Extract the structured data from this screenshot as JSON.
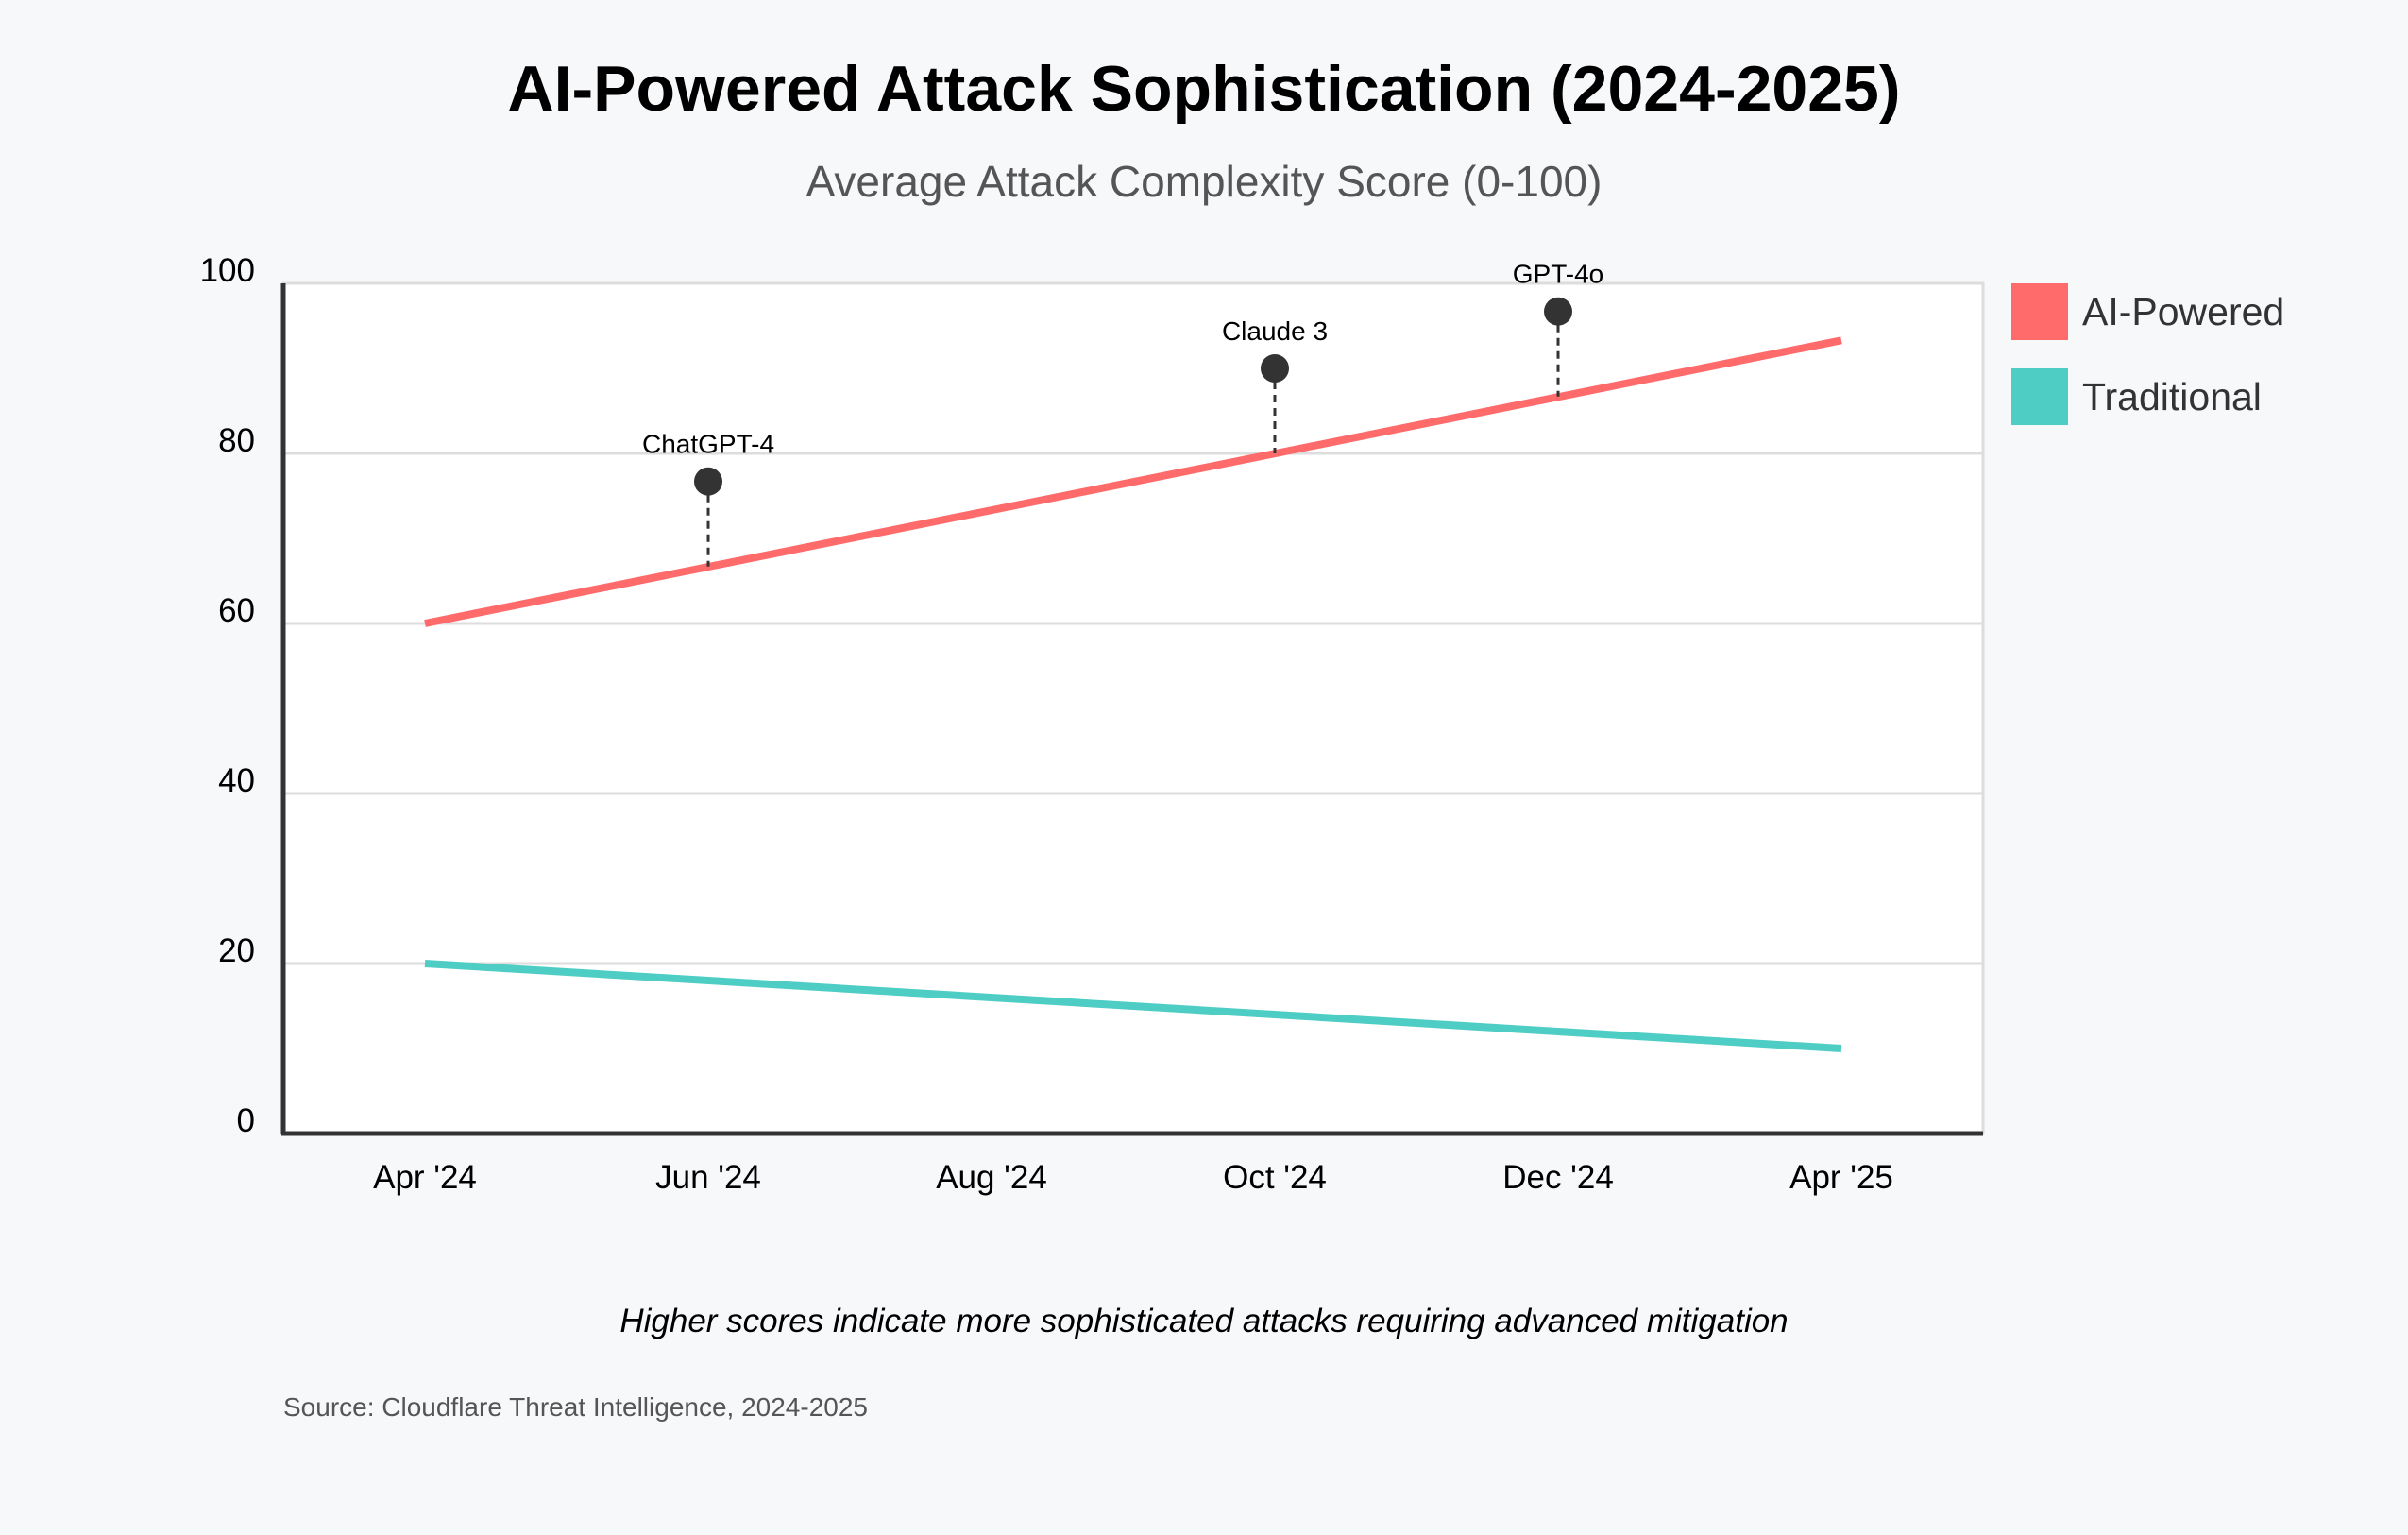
{
  "chart_data": {
    "type": "line",
    "title": "AI-Powered Attack Sophistication (2024-2025)",
    "subtitle": "Average Attack Complexity Score (0-100)",
    "xlabel": "",
    "ylabel": "",
    "ylim": [
      0,
      100
    ],
    "yticks": [
      "0",
      "20",
      "40",
      "60",
      "80",
      "100"
    ],
    "categories": [
      "Apr '24",
      "Jun '24",
      "Aug '24",
      "Oct '24",
      "Dec '24",
      "Apr '25"
    ],
    "grid": true,
    "legend_position": "right",
    "series": [
      {
        "name": "AI-Powered",
        "color": "#ff6b6b",
        "points": [
          {
            "x": "Apr '24",
            "y": 60
          },
          {
            "x": "Apr '25",
            "y": 93.3
          }
        ]
      },
      {
        "name": "Traditional",
        "color": "#4ecdc4",
        "points": [
          {
            "x": "Apr '24",
            "y": 20
          },
          {
            "x": "Apr '25",
            "y": 10
          }
        ]
      }
    ],
    "annotations": [
      {
        "label": "ChatGPT-4",
        "x": "Jun '24",
        "y": 76.7,
        "line_to": 66.7
      },
      {
        "label": "Claude 3",
        "x": "Oct '24",
        "y": 90,
        "line_to": 80
      },
      {
        "label": "GPT-4o",
        "x": "Dec '24",
        "y": 96.7,
        "line_to": 86.7
      }
    ],
    "footnote": "Higher scores indicate more sophisticated attacks requiring advanced mitigation",
    "source": "Source: Cloudflare Threat Intelligence, 2024-2025",
    "colors": {
      "background": "#f7f8fa",
      "plot_background": "#ffffff",
      "grid": "#dddddd",
      "axis": "#333333",
      "marker": "#333333"
    }
  }
}
